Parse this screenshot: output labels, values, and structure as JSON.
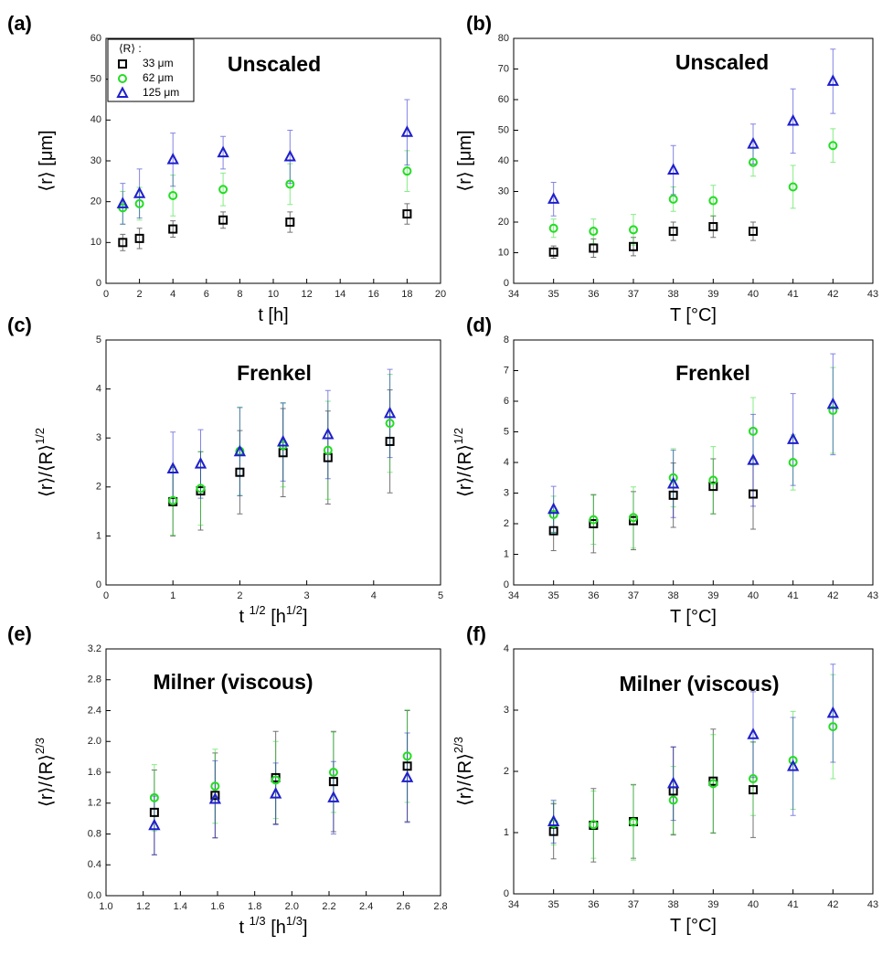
{
  "chart_data": [
    {
      "type": "scatter",
      "panel_label": "(a)",
      "title": "Unscaled",
      "xlabel": [
        "t [h]"
      ],
      "ylabel": [
        "⟨r⟩ [μm]"
      ],
      "xlim": [
        0,
        20
      ],
      "xticks": [
        0,
        2,
        4,
        6,
        8,
        10,
        12,
        14,
        16,
        18,
        20
      ],
      "ylim": [
        0,
        60
      ],
      "yticks": [
        0,
        10,
        20,
        30,
        40,
        50,
        60
      ],
      "legend": "upper left",
      "legend_title": "⟨R⟩ :",
      "series": [
        {
          "name": "33 μm",
          "color": "#000000",
          "marker": "square",
          "x": [
            1,
            2,
            4,
            7,
            11,
            18
          ],
          "values": [
            10,
            11,
            13.3,
            15.5,
            15,
            17
          ],
          "errors": [
            2,
            2.5,
            2,
            2,
            2.5,
            2.5
          ]
        },
        {
          "name": "62 μm",
          "color": "#22dd22",
          "marker": "circle",
          "x": [
            1,
            2,
            4,
            7,
            11,
            18
          ],
          "values": [
            18.5,
            19.5,
            21.5,
            23,
            24.3,
            27.5
          ],
          "errors": [
            4,
            4,
            5,
            4,
            5,
            5
          ]
        },
        {
          "name": "125 μm",
          "color": "#1f1fcc",
          "marker": "triangle",
          "x": [
            1,
            2,
            4,
            7,
            11,
            18
          ],
          "values": [
            19.5,
            22,
            30.3,
            32,
            31,
            37
          ],
          "errors": [
            5,
            6,
            6.5,
            4,
            6.5,
            8
          ]
        }
      ]
    },
    {
      "type": "scatter",
      "panel_label": "(b)",
      "title": "Unscaled",
      "xlabel": [
        "T [°C]"
      ],
      "ylabel": [
        "⟨r⟩ [μm]"
      ],
      "xlim": [
        34,
        43
      ],
      "xticks": [
        34,
        35,
        36,
        37,
        38,
        39,
        40,
        41,
        42,
        43
      ],
      "ylim": [
        0,
        80
      ],
      "yticks": [
        0,
        10,
        20,
        30,
        40,
        50,
        60,
        70,
        80
      ],
      "series": [
        {
          "color": "#000000",
          "marker": "square",
          "x": [
            35,
            36,
            37,
            38,
            39,
            40
          ],
          "values": [
            10.2,
            11.5,
            12,
            17,
            18.5,
            17
          ],
          "errors": [
            2,
            3,
            3,
            3,
            3.5,
            3
          ]
        },
        {
          "color": "#22dd22",
          "marker": "circle",
          "x": [
            35,
            36,
            37,
            38,
            39,
            40,
            41,
            42
          ],
          "values": [
            18,
            17,
            17.5,
            27.5,
            27,
            39.5,
            31.5,
            45
          ],
          "errors": [
            3,
            4,
            5,
            4,
            5,
            4.5,
            7,
            5.5
          ]
        },
        {
          "color": "#1f1fcc",
          "marker": "triangle",
          "x": [
            35,
            38,
            40,
            41,
            42
          ],
          "values": [
            27.5,
            37,
            45.5,
            53,
            66
          ],
          "errors": [
            5.5,
            8,
            6.5,
            10.5,
            10.5
          ]
        }
      ]
    },
    {
      "type": "scatter",
      "panel_label": "(c)",
      "title": "Frenkel",
      "xlabel": [
        "t ",
        "1/2",
        " [h",
        "1/2",
        "]"
      ],
      "ylabel": [
        "⟨r⟩/⟨R⟩",
        "1/2"
      ],
      "xlim": [
        0,
        5
      ],
      "xticks": [
        0,
        1,
        2,
        3,
        4,
        5
      ],
      "ylim": [
        0,
        5
      ],
      "yticks": [
        0,
        1,
        2,
        3,
        4,
        5
      ],
      "series": [
        {
          "color": "#000000",
          "marker": "square",
          "x": [
            1,
            1.414,
            2,
            2.646,
            3.317,
            4.243
          ],
          "values": [
            1.7,
            1.92,
            2.3,
            2.7,
            2.6,
            2.93
          ],
          "errors": [
            0.7,
            0.8,
            0.85,
            0.9,
            0.95,
            1.05
          ]
        },
        {
          "color": "#22dd22",
          "marker": "circle",
          "x": [
            1,
            1.414,
            2,
            2.646,
            3.317,
            4.243
          ],
          "values": [
            1.72,
            1.97,
            2.73,
            2.85,
            2.75,
            3.3
          ],
          "errors": [
            0.7,
            0.75,
            0.9,
            0.85,
            1.0,
            1.0
          ]
        },
        {
          "color": "#1f1fcc",
          "marker": "triangle",
          "x": [
            1,
            1.414,
            2,
            2.646,
            3.317,
            4.243
          ],
          "values": [
            2.37,
            2.47,
            2.72,
            2.92,
            3.07,
            3.5
          ],
          "errors": [
            0.75,
            0.7,
            0.9,
            0.8,
            0.9,
            0.9
          ]
        }
      ]
    },
    {
      "type": "scatter",
      "panel_label": "(d)",
      "title": "Frenkel",
      "xlabel": [
        "T [°C]"
      ],
      "ylabel": [
        "⟨r⟩/⟨R⟩",
        "1/2"
      ],
      "xlim": [
        34,
        43
      ],
      "xticks": [
        34,
        35,
        36,
        37,
        38,
        39,
        40,
        41,
        42,
        43
      ],
      "ylim": [
        0,
        8
      ],
      "yticks": [
        0,
        1,
        2,
        3,
        4,
        5,
        6,
        7,
        8
      ],
      "series": [
        {
          "color": "#000000",
          "marker": "square",
          "x": [
            35,
            36,
            37,
            38,
            39,
            40
          ],
          "values": [
            1.77,
            2.0,
            2.1,
            2.93,
            3.22,
            2.97
          ],
          "errors": [
            0.65,
            0.95,
            0.95,
            1.05,
            0.9,
            1.15
          ]
        },
        {
          "color": "#22dd22",
          "marker": "circle",
          "x": [
            35,
            36,
            37,
            38,
            39,
            40,
            41,
            42
          ],
          "values": [
            2.3,
            2.13,
            2.2,
            3.5,
            3.42,
            5.02,
            4.0,
            5.7
          ],
          "errors": [
            0.6,
            0.8,
            1.0,
            0.95,
            1.1,
            1.1,
            0.9,
            1.4
          ]
        },
        {
          "color": "#1f1fcc",
          "marker": "triangle",
          "x": [
            35,
            38,
            40,
            41,
            42
          ],
          "values": [
            2.47,
            3.3,
            4.07,
            4.75,
            5.9
          ],
          "errors": [
            0.75,
            1.1,
            1.5,
            1.5,
            1.65
          ]
        }
      ]
    },
    {
      "type": "scatter",
      "panel_label": "(e)",
      "title": "Milner (viscous)",
      "xlabel": [
        "t ",
        "1/3",
        " [h",
        "1/3",
        "]"
      ],
      "ylabel": [
        "⟨r⟩/⟨R⟩",
        "2/3"
      ],
      "xlim": [
        1.0,
        2.8
      ],
      "xticks": [
        {
          "value": 1,
          "label": "1.0"
        },
        1.2,
        1.4,
        1.6,
        1.8,
        {
          "value": 2,
          "label": "2.0"
        },
        2.2,
        2.4,
        2.6,
        2.8
      ],
      "ylim": [
        0,
        3.2
      ],
      "yticks": [
        {
          "value": 0,
          "label": "0.0"
        },
        0.4,
        0.8,
        1.2,
        1.6,
        {
          "value": 2,
          "label": "2.0"
        },
        2.4,
        2.8,
        3.2
      ],
      "series": [
        {
          "color": "#000000",
          "marker": "square",
          "x": [
            1.26,
            1.587,
            1.913,
            2.224,
            2.621
          ],
          "values": [
            1.08,
            1.3,
            1.53,
            1.48,
            1.68
          ],
          "errors": [
            0.55,
            0.55,
            0.6,
            0.65,
            0.72
          ]
        },
        {
          "color": "#22dd22",
          "marker": "circle",
          "x": [
            1.26,
            1.587,
            1.913,
            2.224,
            2.621
          ],
          "values": [
            1.27,
            1.42,
            1.5,
            1.6,
            1.81
          ],
          "errors": [
            0.43,
            0.48,
            0.5,
            0.52,
            0.6
          ]
        },
        {
          "color": "#1f1fcc",
          "marker": "triangle",
          "x": [
            1.26,
            1.587,
            1.913,
            2.224,
            2.621
          ],
          "values": [
            0.91,
            1.25,
            1.32,
            1.27,
            1.53
          ],
          "errors": [
            0.38,
            0.5,
            0.4,
            0.47,
            0.58
          ]
        }
      ]
    },
    {
      "type": "scatter",
      "panel_label": "(f)",
      "title": "Milner (viscous)",
      "xlabel": [
        "T  [°C]"
      ],
      "ylabel": [
        "⟨r⟩/⟨R⟩",
        "2/3"
      ],
      "xlim": [
        34,
        43
      ],
      "xticks": [
        34,
        35,
        36,
        37,
        38,
        39,
        40,
        41,
        42,
        43
      ],
      "ylim": [
        0,
        4
      ],
      "yticks": [
        0,
        1,
        2,
        3,
        4
      ],
      "series": [
        {
          "color": "#000000",
          "marker": "square",
          "x": [
            35,
            36,
            37,
            38,
            39,
            40
          ],
          "values": [
            1.02,
            1.12,
            1.18,
            1.68,
            1.84,
            1.7
          ],
          "errors": [
            0.45,
            0.6,
            0.6,
            0.72,
            0.85,
            0.78
          ]
        },
        {
          "color": "#22dd22",
          "marker": "circle",
          "x": [
            35,
            36,
            37,
            38,
            39,
            40,
            41,
            42
          ],
          "values": [
            1.15,
            1.13,
            1.17,
            1.53,
            1.8,
            1.88,
            2.18,
            2.73
          ],
          "errors": [
            0.35,
            0.55,
            0.62,
            0.55,
            0.8,
            0.6,
            0.8,
            0.85
          ]
        },
        {
          "color": "#1f1fcc",
          "marker": "triangle",
          "x": [
            35,
            38,
            40,
            41,
            42
          ],
          "values": [
            1.18,
            1.8,
            2.6,
            2.08,
            2.95
          ],
          "errors": [
            0.35,
            0.6,
            0.7,
            0.8,
            0.8
          ]
        }
      ]
    }
  ]
}
